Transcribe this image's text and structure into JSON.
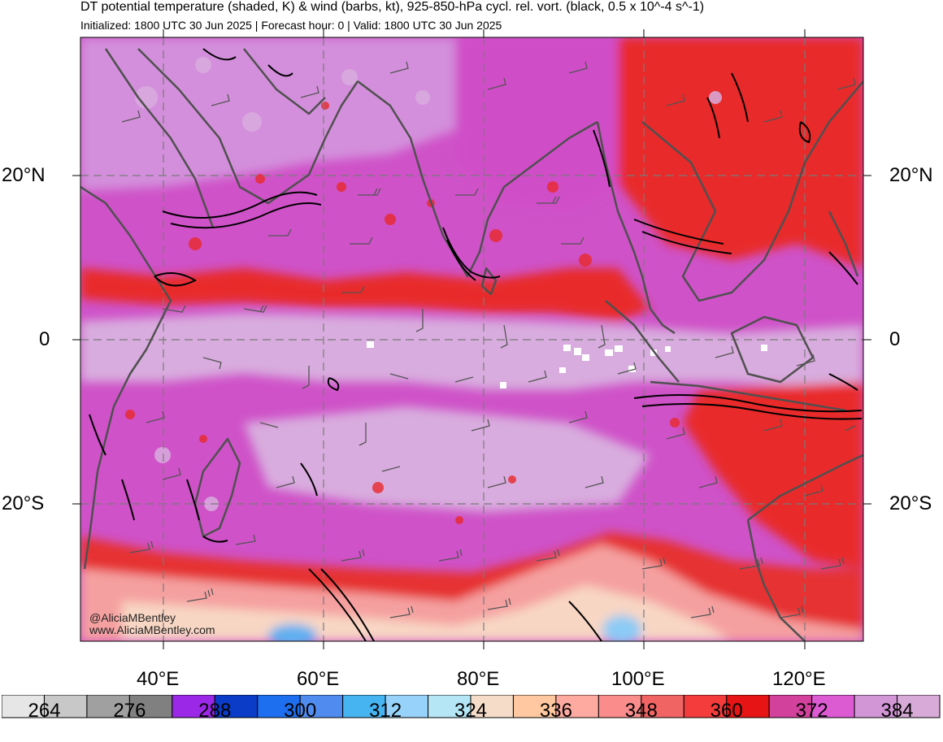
{
  "header": {
    "title": "DT potential temperature (shaded, K) & wind (barbs, kt), 925-850-hPa cycl. rel. vort. (black, 0.5 x 10^-4 s^-1)",
    "subtitle": "Initialized: 1800 UTC 30 Jun 2025 | Forecast hour: 0 | Valid: 1800 UTC 30 Jun 2025"
  },
  "axes": {
    "lat_labels_left": [
      "20°N",
      "0",
      "20°S"
    ],
    "lat_labels_right": [
      "20°N",
      "0",
      "20°S"
    ],
    "lon_labels": [
      "40°E",
      "60°E",
      "80°E",
      "100°E",
      "120°E"
    ],
    "lon_range": [
      30,
      127
    ],
    "lat_range": [
      -37,
      37
    ]
  },
  "credits": {
    "twitter": "@AliciaMBentley",
    "website": "www.AliciaMBentley.com"
  },
  "colorbar": {
    "labels": [
      "264",
      "276",
      "288",
      "300",
      "312",
      "324",
      "336",
      "348",
      "360",
      "372",
      "384"
    ],
    "colors": [
      "#e6e6e6",
      "#c8c8c8",
      "#a0a0a0",
      "#808080",
      "#9a28e6",
      "#0a3cc8",
      "#1e6ef0",
      "#508cf0",
      "#46b4f0",
      "#96d2fa",
      "#b4e6f5",
      "#f5dcc8",
      "#ffc8a0",
      "#ffaaa0",
      "#fa8c8c",
      "#f06464",
      "#f53c3c",
      "#e61414",
      "#d2419b",
      "#dc5ad2",
      "#d296d7",
      "#d7aad7"
    ]
  },
  "field_colors": {
    "magenta": "#d04ec8",
    "light_purple": "#d7a8dc",
    "red": "#e62828",
    "salmon": "#f5a0a0",
    "peach": "#f8d4c0",
    "light_blue": "#8cc8f5",
    "coast": "#505050",
    "contour": "#000000"
  }
}
